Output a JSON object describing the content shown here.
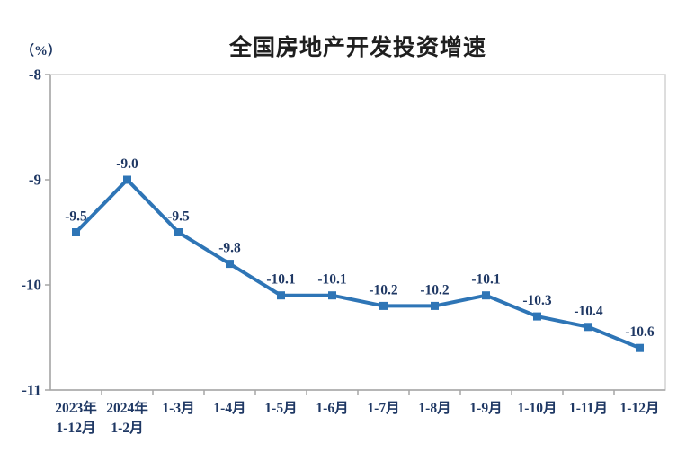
{
  "title": "全国房地产开发投资增速",
  "unit_label": "（%）",
  "colors": {
    "series_line": "#2E75B6",
    "marker_fill": "#2E75B6",
    "label_text": "#1F3864",
    "tick_text": "#1F3864",
    "title_text": "#1f1f1f",
    "frame_border": "#D2D2D2",
    "axis_line": "#A6A6A6"
  },
  "chart_data": {
    "type": "line",
    "title": "全国房地产开发投资增速",
    "ylabel": "（%）",
    "categories": [
      [
        "2023年",
        "1-12月"
      ],
      [
        "2024年",
        "1-2月"
      ],
      [
        "1-3月"
      ],
      [
        "1-4月"
      ],
      [
        "1-5月"
      ],
      [
        "1-6月"
      ],
      [
        "1-7月"
      ],
      [
        "1-8月"
      ],
      [
        "1-9月"
      ],
      [
        "1-10月"
      ],
      [
        "1-11月"
      ],
      [
        "1-12月"
      ]
    ],
    "values": [
      -9.5,
      -9.0,
      -9.5,
      -9.8,
      -10.1,
      -10.1,
      -10.2,
      -10.2,
      -10.1,
      -10.3,
      -10.4,
      -10.6
    ],
    "point_labels": [
      "-9.5",
      "-9.0",
      "-9.5",
      "-9.8",
      "-10.1",
      "-10.1",
      "-10.2",
      "-10.2",
      "-10.1",
      "-10.3",
      "-10.4",
      "-10.6"
    ],
    "ylim": [
      -11,
      -8
    ],
    "y_ticks": [
      -8,
      -9,
      -10,
      -11
    ],
    "y_tick_labels": [
      "-8",
      "-9",
      "-10",
      "-11"
    ],
    "grid": false,
    "legend": "none",
    "marker": "square"
  }
}
